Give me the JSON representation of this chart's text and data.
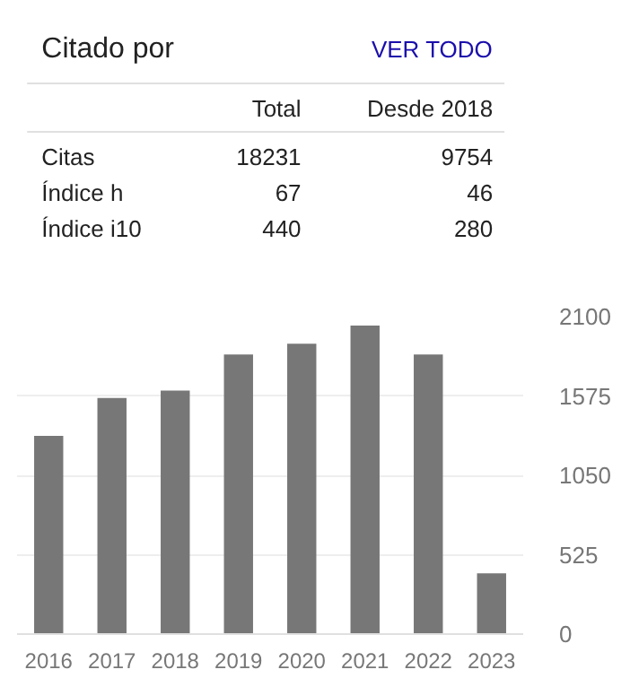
{
  "chart_data": [
    {
      "type": "other",
      "title": "Citado por",
      "annotations": [
        "VER TODO",
        "Total",
        "Desde 2018",
        "Citas",
        "18231",
        "9754",
        "Índice h",
        "67",
        "46",
        "Índice i10",
        "440",
        "280"
      ]
    },
    {
      "type": "bar",
      "categories": [
        "2016",
        "2017",
        "2018",
        "2019",
        "2020",
        "2021",
        "2022",
        "2023"
      ],
      "values": [
        1311,
        1562,
        1610,
        1849,
        1921,
        2040,
        1849,
        402
      ],
      "color": "#777777",
      "ylim": [
        0,
        2100
      ],
      "yticks": [
        0,
        525,
        1050,
        1575,
        2100
      ],
      "grid": "y"
    }
  ]
}
